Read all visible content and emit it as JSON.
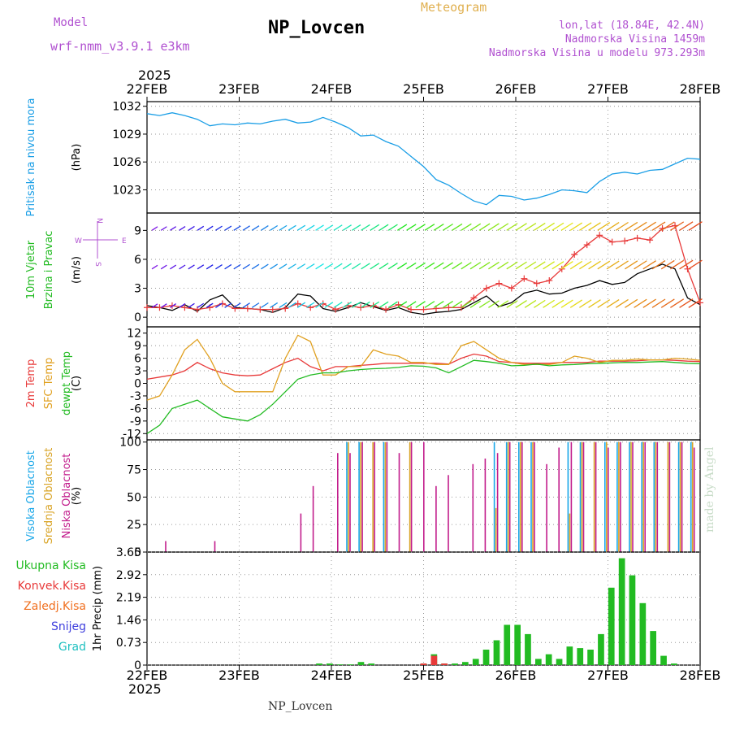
{
  "header": {
    "model_label": "Model",
    "model_name": "wrf-nmm_v3.9.1 e3km",
    "station": "NP_Lovcen",
    "product": "Meteogram",
    "lonlat": "lon,lat (18.84E, 42.4N)",
    "elev": "Nadmorska Visina 1459m",
    "elev_model": "Nadmorska Visina u modelu 973.293m",
    "year_top": "2025",
    "year_bottom": "2025",
    "footer_station": "NP_Lovcen",
    "credit": "made by Angel"
  },
  "colors": {
    "pressure": "#1a9ee6",
    "wind_label": "#22bb22",
    "t2m": "#e83a3a",
    "sfc": "#e0a020",
    "dewpt": "#22bb22",
    "cloud_high": "#1aa7e8",
    "cloud_mid": "#d9a426",
    "cloud_low": "#c21d8c",
    "precip_total": "#22bb22",
    "precip_conv": "#e83a3a",
    "precip_freez": "#f07020",
    "precip_snow": "#4040dd",
    "precip_hail": "#20c0c0",
    "title": "#000000",
    "purple": "#b050d0"
  },
  "axes": {
    "x_ticks": [
      "22FEB",
      "23FEB",
      "24FEB",
      "25FEB",
      "26FEB",
      "27FEB",
      "28FEB"
    ],
    "legend_wind_w": "W",
    "legend_wind_e": "E",
    "legend_wind_n": "N",
    "legend_wind_s": "S"
  },
  "chart_data": [
    {
      "id": "pressure",
      "type": "line",
      "ylabel_lines": [
        "Pritisak na nivou mora"
      ],
      "unit": "(hPa)",
      "ylim": [
        1020.5,
        1032.5
      ],
      "yticks": [
        1023,
        1026,
        1029,
        1032
      ],
      "series": [
        {
          "name": "MSLP",
          "color_key": "pressure",
          "values": [
            1031.2,
            1031.0,
            1031.3,
            1031.0,
            1030.6,
            1029.9,
            1030.1,
            1030.0,
            1030.2,
            1030.1,
            1030.4,
            1030.6,
            1030.2,
            1030.3,
            1030.8,
            1030.3,
            1029.7,
            1028.8,
            1028.9,
            1028.2,
            1027.7,
            1026.6,
            1025.5,
            1024.1,
            1023.5,
            1022.6,
            1021.8,
            1021.4,
            1022.4,
            1022.3,
            1021.9,
            1022.1,
            1022.5,
            1023.0,
            1022.9,
            1022.7,
            1023.9,
            1024.7,
            1024.9,
            1024.7,
            1025.1,
            1025.2,
            1025.8,
            1026.4,
            1026.3
          ]
        }
      ]
    },
    {
      "id": "wind",
      "type": "line",
      "ylabel_lines": [
        "10m Vjetar",
        "Brzina i Pravac"
      ],
      "unit": "(m/s)",
      "ylim": [
        -1,
        10.8
      ],
      "yticks": [
        0,
        3,
        6,
        9
      ],
      "series": [
        {
          "name": "10m wind speed",
          "color": "#000000",
          "values": [
            1.2,
            1.0,
            0.7,
            1.3,
            0.6,
            1.8,
            2.3,
            1.0,
            0.9,
            0.8,
            0.5,
            1.0,
            2.4,
            2.2,
            0.9,
            0.6,
            1.0,
            1.5,
            1.1,
            0.7,
            1.0,
            0.5,
            0.3,
            0.5,
            0.6,
            0.8,
            1.5,
            2.2,
            1.1,
            1.5,
            2.5,
            2.8,
            2.4,
            2.5,
            3.0,
            3.3,
            3.8,
            3.4,
            3.6,
            4.5,
            5.0,
            5.5,
            5.0,
            2.0,
            1.3
          ]
        },
        {
          "name": "gust",
          "color_key": "t2m",
          "values": [
            1.0,
            1.0,
            1.2,
            1.0,
            0.8,
            1.0,
            1.4,
            0.9,
            0.9,
            0.8,
            0.8,
            0.9,
            1.4,
            1.0,
            1.4,
            0.8,
            1.2,
            1.0,
            1.2,
            0.8,
            1.3,
            0.8,
            0.8,
            0.9,
            1.0,
            1.0,
            2.0,
            3.0,
            3.5,
            3.0,
            4.0,
            3.5,
            3.8,
            5.0,
            6.5,
            7.5,
            8.5,
            7.8,
            7.9,
            8.2,
            8.0,
            9.2,
            9.5,
            5.0,
            1.5
          ]
        }
      ]
    },
    {
      "id": "temperature",
      "type": "line",
      "ylabel_lines": [
        "2m Temp",
        "SFC Temp",
        "dewpt Temp"
      ],
      "unit": "(C)",
      "ylim": [
        -13.5,
        13.5
      ],
      "yticks": [
        -12,
        -9,
        -6,
        -3,
        0,
        3,
        6,
        9,
        12
      ],
      "series": [
        {
          "name": "2m Temp",
          "color_key": "t2m",
          "values": [
            1,
            1.5,
            2,
            3,
            5,
            3.5,
            2.5,
            2,
            1.8,
            2,
            3.5,
            5,
            6,
            4,
            3,
            4,
            4,
            4.3,
            4.5,
            4.8,
            4.8,
            4.8,
            4.8,
            4.8,
            4.6,
            6,
            7,
            6.5,
            5.2,
            5,
            4.8,
            4.8,
            4.8,
            5,
            5,
            5,
            5.3,
            5.3,
            5.3,
            5.4,
            5.6,
            5.6,
            5.5,
            5.3,
            5.2
          ]
        },
        {
          "name": "SFC Temp",
          "color_key": "sfc",
          "values": [
            -4,
            -3,
            2,
            8,
            10.5,
            6,
            0,
            -2,
            -2,
            -2,
            -2,
            6,
            11.5,
            10,
            2,
            2,
            4,
            4,
            8,
            7,
            6.5,
            5,
            5,
            4.5,
            4.5,
            9,
            10,
            8,
            6,
            5,
            4.5,
            4.5,
            4.5,
            5,
            6.5,
            6,
            5,
            5.5,
            5.5,
            5.8,
            5.6,
            5.6,
            6,
            5.8,
            5.5
          ]
        },
        {
          "name": "dewpt Temp",
          "color_key": "dewpt",
          "values": [
            -12,
            -10,
            -6,
            -5,
            -4,
            -6,
            -8,
            -8.5,
            -9,
            -7.5,
            -5,
            -2,
            1,
            2,
            2.5,
            2.5,
            3,
            3.3,
            3.5,
            3.6,
            3.8,
            4.2,
            4.1,
            3.7,
            2.5,
            4,
            5.5,
            5.2,
            4.8,
            4.2,
            4.3,
            4.6,
            4.2,
            4.4,
            4.5,
            4.7,
            4.8,
            4.9,
            5.0,
            5.0,
            5.1,
            5.2,
            5.0,
            4.8,
            4.7
          ]
        }
      ]
    },
    {
      "id": "cloud",
      "type": "bar",
      "ylabel_lines": [
        "Visoka Oblacnost",
        "Srednja Oblacnost",
        "Niska Oblacnost"
      ],
      "unit": "(%)",
      "ylim": [
        0,
        102
      ],
      "yticks": [
        0,
        25,
        50,
        75,
        100
      ],
      "series": [
        {
          "name": "Visoka Oblacnost",
          "color_key": "cloud_high",
          "values": [
            0,
            0,
            0,
            0,
            0,
            0,
            0,
            0,
            0,
            0,
            0,
            0,
            0,
            0,
            0,
            0,
            100,
            100,
            0,
            100,
            0,
            0,
            0,
            0,
            0,
            0,
            0,
            0,
            100,
            100,
            100,
            100,
            0,
            0,
            100,
            100,
            0,
            100,
            100,
            100,
            100,
            100,
            0,
            100,
            100
          ]
        },
        {
          "name": "Srednja Oblacnost",
          "color_key": "cloud_mid",
          "values": [
            0,
            0,
            0,
            0,
            0,
            0,
            0,
            0,
            0,
            0,
            0,
            0,
            0,
            0,
            0,
            0,
            100,
            100,
            100,
            100,
            0,
            100,
            0,
            0,
            0,
            0,
            0,
            0,
            40,
            100,
            100,
            100,
            0,
            0,
            35,
            100,
            100,
            100,
            100,
            100,
            100,
            100,
            100,
            100,
            100
          ]
        },
        {
          "name": "Niska Oblacnost",
          "color_key": "cloud_low",
          "values": [
            0,
            10,
            0,
            0,
            0,
            10,
            0,
            0,
            0,
            0,
            0,
            0,
            35,
            60,
            0,
            90,
            90,
            100,
            100,
            100,
            90,
            100,
            100,
            60,
            70,
            0,
            80,
            85,
            90,
            100,
            100,
            100,
            80,
            95,
            100,
            100,
            100,
            95,
            100,
            100,
            100,
            100,
            100,
            100,
            95
          ]
        }
      ]
    },
    {
      "id": "precip",
      "type": "bar",
      "ylabel_lines": [
        "1hr Precip (mm)"
      ],
      "legend": [
        "Ukupna Kisa",
        "Konvek.Kisa",
        "Zaledj.Kisa",
        "Snijeg",
        "Grad"
      ],
      "ylim": [
        0,
        3.65
      ],
      "yticks": [
        0,
        0.73,
        1.46,
        2.19,
        2.92,
        3.65
      ],
      "tick_labels": [
        "0",
        "0.73",
        "1.46",
        "2.19",
        "2.92",
        "3.65"
      ],
      "series": [
        {
          "name": "Ukupna Kisa",
          "color_key": "precip_total",
          "values": [
            0,
            0,
            0,
            0,
            0,
            0,
            0,
            0,
            0,
            0,
            0,
            0,
            0,
            0,
            0,
            0,
            0.05,
            0.05,
            0.02,
            0.02,
            0.1,
            0.05,
            0,
            0,
            0,
            0,
            0.05,
            0.35,
            0.05,
            0.05,
            0.1,
            0.2,
            0.5,
            0.8,
            1.3,
            1.3,
            1.0,
            0.2,
            0.35,
            0.2,
            0.6,
            0.55,
            0.5,
            1.0,
            2.5,
            3.45,
            2.9,
            2.0,
            1.1,
            0.3,
            0.05,
            0,
            0
          ]
        },
        {
          "name": "Konvek.Kisa",
          "color_key": "precip_conv",
          "values": [
            0,
            0,
            0,
            0,
            0,
            0,
            0,
            0,
            0,
            0,
            0,
            0,
            0,
            0,
            0,
            0,
            0,
            0,
            0,
            0,
            0,
            0,
            0,
            0,
            0,
            0,
            0.05,
            0.3,
            0.05,
            0,
            0,
            0,
            0,
            0,
            0,
            0,
            0,
            0,
            0,
            0,
            0,
            0,
            0,
            0,
            0,
            0,
            0,
            0,
            0,
            0,
            0,
            0,
            0
          ]
        }
      ]
    }
  ]
}
